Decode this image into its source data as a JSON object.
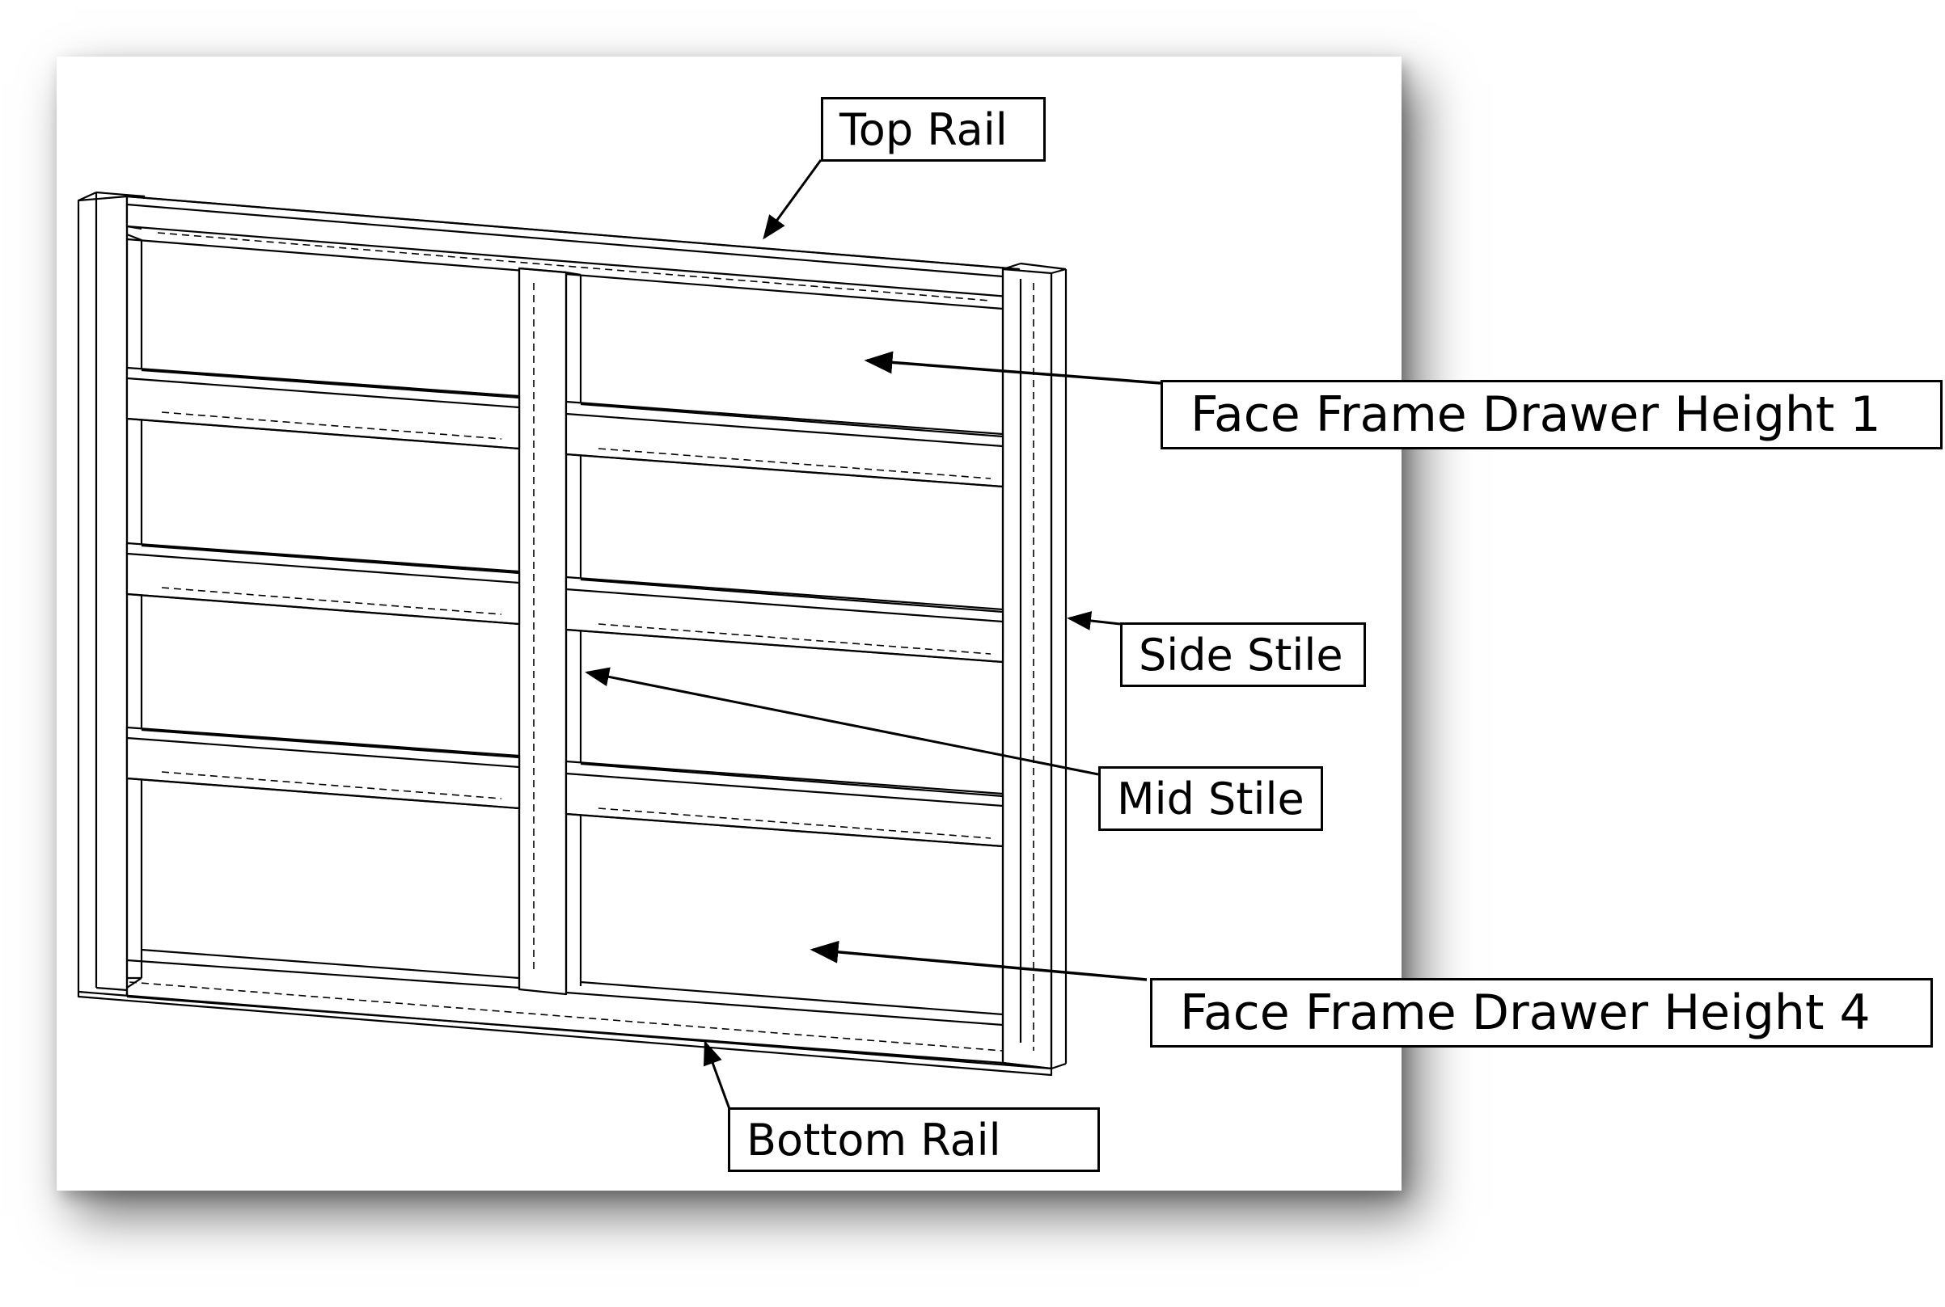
{
  "labels": {
    "top_rail": "Top Rail",
    "side_stile": "Side Stile",
    "mid_stile": "Mid Stile",
    "bottom_rail": "Bottom Rail",
    "drawer_height_1": "Face Frame Drawer Height 1",
    "drawer_height_4": "Face Frame Drawer Height 4"
  },
  "colors": {
    "line": "#000000",
    "background": "#ffffff",
    "shadow": "#7a7a7a"
  },
  "icons": {
    "arrowhead": "filled-triangle-arrow-icon"
  }
}
